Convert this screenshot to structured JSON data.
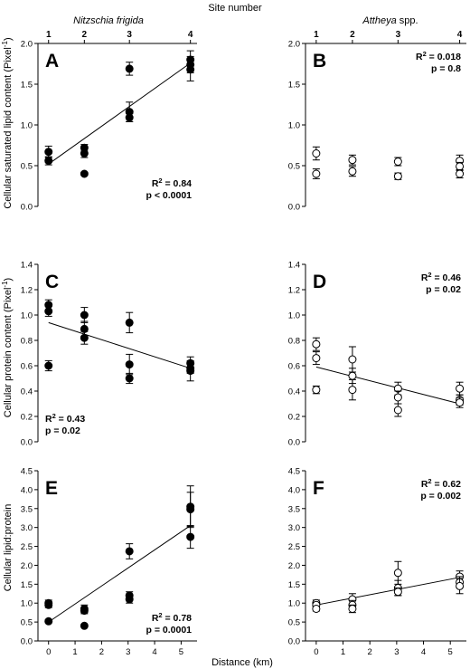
{
  "figure": {
    "top_axis_label": "Site number",
    "bottom_axis_label": "Distance (km)",
    "columns": [
      {
        "title_italic": "Nitzschia frigida",
        "title_plain": ""
      },
      {
        "title_italic": "Attheya",
        "title_plain": " spp."
      }
    ],
    "row_ylabels": [
      {
        "text": "Cellular saturated lipid content (Pixel",
        "sup": "-1",
        "close": ")"
      },
      {
        "text": "Cellular protein content (Pixel",
        "sup": "-1",
        "close": ")"
      },
      {
        "text": "Cellular lipid:protein",
        "sup": "",
        "close": ""
      }
    ],
    "site_axis": {
      "sites": [
        1,
        2,
        3,
        4
      ],
      "distances_km": [
        0,
        1.35,
        3.05,
        5.35
      ]
    }
  },
  "chart_data": [
    {
      "panel": "A",
      "type": "scatter",
      "marker": "filled",
      "xlim": [
        -0.4,
        5.6
      ],
      "xticks": [
        0,
        1,
        2,
        3,
        4,
        5
      ],
      "ylim": [
        0,
        2.0
      ],
      "yticks": [
        "0.0",
        "0.5",
        "1.0",
        "1.5",
        "2.0"
      ],
      "points": [
        {
          "x": 0,
          "y": 0.67,
          "err": 0.07
        },
        {
          "x": 0,
          "y": 0.56,
          "err": 0.05
        },
        {
          "x": 1.35,
          "y": 0.72,
          "err": 0.04
        },
        {
          "x": 1.35,
          "y": 0.65,
          "err": 0.05
        },
        {
          "x": 1.35,
          "y": 0.4,
          "err": 0.02
        },
        {
          "x": 3.05,
          "y": 1.69,
          "err": 0.08
        },
        {
          "x": 3.05,
          "y": 1.16,
          "err": 0.12
        },
        {
          "x": 3.05,
          "y": 1.09,
          "err": 0.05
        },
        {
          "x": 5.35,
          "y": 1.8,
          "err": 0.11
        },
        {
          "x": 5.35,
          "y": 1.74,
          "err": 0.1
        },
        {
          "x": 5.35,
          "y": 1.68,
          "err": 0.14
        }
      ],
      "fit": [
        [
          0,
          0.52
        ],
        [
          5.35,
          1.76
        ]
      ],
      "stat_lines": [
        "R2 = 0.84",
        "p < 0.0001"
      ],
      "stat_pos": "bottom-right"
    },
    {
      "panel": "B",
      "type": "scatter",
      "marker": "open",
      "xlim": [
        -0.4,
        5.6
      ],
      "xticks": [
        0,
        1,
        2,
        3,
        4,
        5
      ],
      "ylim": [
        0,
        2.0
      ],
      "yticks": [
        "0.0",
        "0.5",
        "1.0",
        "1.5",
        "2.0"
      ],
      "points": [
        {
          "x": 0,
          "y": 0.65,
          "err": 0.08
        },
        {
          "x": 0,
          "y": 0.4,
          "err": 0.06
        },
        {
          "x": 1.35,
          "y": 0.57,
          "err": 0.06
        },
        {
          "x": 1.35,
          "y": 0.43,
          "err": 0.06
        },
        {
          "x": 3.05,
          "y": 0.55,
          "err": 0.05
        },
        {
          "x": 3.05,
          "y": 0.37,
          "err": 0.04
        },
        {
          "x": 5.35,
          "y": 0.56,
          "err": 0.07
        },
        {
          "x": 5.35,
          "y": 0.49,
          "err": 0.05
        },
        {
          "x": 5.35,
          "y": 0.4,
          "err": 0.05
        }
      ],
      "fit": null,
      "stat_lines": [
        "R2 = 0.018",
        "p = 0.8"
      ],
      "stat_pos": "top-right"
    },
    {
      "panel": "C",
      "type": "scatter",
      "marker": "filled",
      "xlim": [
        -0.4,
        5.6
      ],
      "xticks": [
        0,
        1,
        2,
        3,
        4,
        5
      ],
      "ylim": [
        0,
        1.4
      ],
      "yticks": [
        "0.0",
        "0.2",
        "0.4",
        "0.6",
        "0.8",
        "1.0",
        "1.2",
        "1.4"
      ],
      "points": [
        {
          "x": 0,
          "y": 1.08,
          "err": 0.04
        },
        {
          "x": 0,
          "y": 1.03,
          "err": 0.04
        },
        {
          "x": 0,
          "y": 0.6,
          "err": 0.04
        },
        {
          "x": 1.35,
          "y": 1.0,
          "err": 0.06
        },
        {
          "x": 1.35,
          "y": 0.89,
          "err": 0.06
        },
        {
          "x": 1.35,
          "y": 0.82,
          "err": 0.05
        },
        {
          "x": 3.05,
          "y": 0.94,
          "err": 0.08
        },
        {
          "x": 3.05,
          "y": 0.61,
          "err": 0.08
        },
        {
          "x": 3.05,
          "y": 0.5,
          "err": 0.04
        },
        {
          "x": 5.35,
          "y": 0.62,
          "err": 0.05
        },
        {
          "x": 5.35,
          "y": 0.58,
          "err": 0.04
        },
        {
          "x": 5.35,
          "y": 0.56,
          "err": 0.08
        }
      ],
      "fit": [
        [
          0,
          0.94
        ],
        [
          5.35,
          0.58
        ]
      ],
      "stat_lines": [
        "R2 = 0.43",
        "p = 0.02"
      ],
      "stat_pos": "bottom-left"
    },
    {
      "panel": "D",
      "type": "scatter",
      "marker": "open",
      "xlim": [
        -0.4,
        5.6
      ],
      "xticks": [
        0,
        1,
        2,
        3,
        4,
        5
      ],
      "ylim": [
        0,
        1.4
      ],
      "yticks": [
        "0.0",
        "0.2",
        "0.4",
        "0.6",
        "0.8",
        "1.0",
        "1.2",
        "1.4"
      ],
      "points": [
        {
          "x": 0,
          "y": 0.77,
          "err": 0.05
        },
        {
          "x": 0,
          "y": 0.66,
          "err": 0.05
        },
        {
          "x": 0,
          "y": 0.41,
          "err": 0.03
        },
        {
          "x": 1.35,
          "y": 0.65,
          "err": 0.1
        },
        {
          "x": 1.35,
          "y": 0.52,
          "err": 0.06
        },
        {
          "x": 1.35,
          "y": 0.41,
          "err": 0.08
        },
        {
          "x": 3.05,
          "y": 0.42,
          "err": 0.05
        },
        {
          "x": 3.05,
          "y": 0.35,
          "err": 0.05
        },
        {
          "x": 3.05,
          "y": 0.25,
          "err": 0.05
        },
        {
          "x": 5.35,
          "y": 0.42,
          "err": 0.05
        },
        {
          "x": 5.35,
          "y": 0.33,
          "err": 0.04
        },
        {
          "x": 5.35,
          "y": 0.31,
          "err": 0.04
        }
      ],
      "fit": [
        [
          0,
          0.59
        ],
        [
          5.35,
          0.3
        ]
      ],
      "stat_lines": [
        "R2 = 0.46",
        "p = 0.02"
      ],
      "stat_pos": "top-right"
    },
    {
      "panel": "E",
      "type": "scatter",
      "marker": "filled",
      "xlim": [
        -0.4,
        5.6
      ],
      "xticks": [
        0,
        1,
        2,
        3,
        4,
        5
      ],
      "ylim": [
        0,
        4.5
      ],
      "yticks": [
        "0.0",
        "0.5",
        "1.0",
        "1.5",
        "2.0",
        "2.5",
        "3.0",
        "3.5",
        "4.0",
        "4.5"
      ],
      "points": [
        {
          "x": 0,
          "y": 1.0,
          "err": 0.08
        },
        {
          "x": 0,
          "y": 0.95,
          "err": 0.07
        },
        {
          "x": 0,
          "y": 0.52,
          "err": 0.04
        },
        {
          "x": 1.35,
          "y": 0.85,
          "err": 0.1
        },
        {
          "x": 1.35,
          "y": 0.8,
          "err": 0.08
        },
        {
          "x": 1.35,
          "y": 0.4,
          "err": 0.03
        },
        {
          "x": 3.05,
          "y": 2.37,
          "err": 0.2
        },
        {
          "x": 3.05,
          "y": 1.2,
          "err": 0.1
        },
        {
          "x": 3.05,
          "y": 1.1,
          "err": 0.1
        },
        {
          "x": 5.35,
          "y": 3.55,
          "err": 0.55
        },
        {
          "x": 5.35,
          "y": 3.48,
          "err": 0.45
        },
        {
          "x": 5.35,
          "y": 2.75,
          "err": 0.3
        }
      ],
      "fit": [
        [
          0,
          0.5
        ],
        [
          5.35,
          3.05
        ]
      ],
      "stat_lines": [
        "R2 = 0.78",
        "p = 0.0001"
      ],
      "stat_pos": "bottom-right"
    },
    {
      "panel": "F",
      "type": "scatter",
      "marker": "open",
      "xlim": [
        -0.4,
        5.6
      ],
      "xticks": [
        0,
        1,
        2,
        3,
        4,
        5
      ],
      "ylim": [
        0,
        4.5
      ],
      "yticks": [
        "0.0",
        "0.5",
        "1.0",
        "1.5",
        "2.0",
        "2.5",
        "3.0",
        "3.5",
        "4.0",
        "4.5"
      ],
      "points": [
        {
          "x": 0,
          "y": 1.0,
          "err": 0.08
        },
        {
          "x": 0,
          "y": 0.95,
          "err": 0.07
        },
        {
          "x": 0,
          "y": 0.85,
          "err": 0.06
        },
        {
          "x": 1.35,
          "y": 1.1,
          "err": 0.15
        },
        {
          "x": 1.35,
          "y": 0.95,
          "err": 0.12
        },
        {
          "x": 1.35,
          "y": 0.85,
          "err": 0.1
        },
        {
          "x": 3.05,
          "y": 1.8,
          "err": 0.3
        },
        {
          "x": 3.05,
          "y": 1.4,
          "err": 0.2
        },
        {
          "x": 3.05,
          "y": 1.3,
          "err": 0.1
        },
        {
          "x": 5.35,
          "y": 1.7,
          "err": 0.15
        },
        {
          "x": 5.35,
          "y": 1.55,
          "err": 0.15
        },
        {
          "x": 5.35,
          "y": 1.45,
          "err": 0.2
        }
      ],
      "fit": [
        [
          0,
          0.95
        ],
        [
          5.35,
          1.68
        ]
      ],
      "stat_lines": [
        "R2 = 0.62",
        "p = 0.002"
      ],
      "stat_pos": "top-right"
    }
  ]
}
